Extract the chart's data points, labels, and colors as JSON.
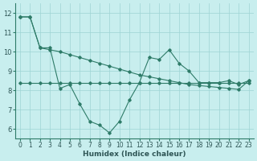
{
  "x": [
    0,
    1,
    2,
    3,
    4,
    5,
    6,
    7,
    8,
    9,
    10,
    11,
    12,
    13,
    14,
    15,
    16,
    17,
    18,
    19,
    20,
    21,
    22,
    23
  ],
  "line1": [
    11.8,
    11.8,
    10.2,
    10.2,
    8.1,
    8.3,
    7.3,
    6.4,
    6.2,
    5.8,
    6.4,
    7.5,
    8.4,
    9.7,
    9.6,
    10.1,
    9.4,
    9.0,
    8.4,
    8.4,
    8.4,
    8.5,
    8.3,
    8.5
  ],
  "line2": [
    11.8,
    11.8,
    10.2,
    10.1,
    10.0,
    9.85,
    9.7,
    9.55,
    9.4,
    9.25,
    9.1,
    8.95,
    8.8,
    8.7,
    8.6,
    8.5,
    8.4,
    8.3,
    8.25,
    8.2,
    8.15,
    8.1,
    8.05,
    8.5
  ],
  "line3": [
    8.4,
    8.4,
    8.4,
    8.4,
    8.4,
    8.4,
    8.4,
    8.4,
    8.4,
    8.4,
    8.4,
    8.4,
    8.4,
    8.4,
    8.4,
    8.4,
    8.4,
    8.4,
    8.4,
    8.4,
    8.4,
    8.4,
    8.4,
    8.4
  ],
  "line_color": "#2e7b68",
  "bg_color": "#c8eeee",
  "grid_color": "#9ed4d4",
  "xlabel": "Humidex (Indice chaleur)",
  "ylim": [
    5.5,
    12.5
  ],
  "xlim": [
    -0.5,
    23.5
  ],
  "yticks": [
    6,
    7,
    8,
    9,
    10,
    11,
    12
  ],
  "xticks": [
    0,
    1,
    2,
    3,
    4,
    5,
    6,
    7,
    8,
    9,
    10,
    11,
    12,
    13,
    14,
    15,
    16,
    17,
    18,
    19,
    20,
    21,
    22,
    23
  ],
  "xtick_labels": [
    "0",
    "1",
    "2",
    "3",
    "4",
    "5",
    "6",
    "7",
    "8",
    "9",
    "10",
    "11",
    "12",
    "13",
    "14",
    "15",
    "16",
    "17",
    "18",
    "19",
    "20",
    "21",
    "22",
    "23"
  ],
  "ytick_labels": [
    "6",
    "7",
    "8",
    "9",
    "10",
    "11",
    "12"
  ],
  "tick_fontsize": 5.5,
  "xlabel_fontsize": 6.5,
  "xlabel_color": "#2e5555",
  "marker": "D",
  "markersize": 1.8,
  "linewidth": 0.8
}
